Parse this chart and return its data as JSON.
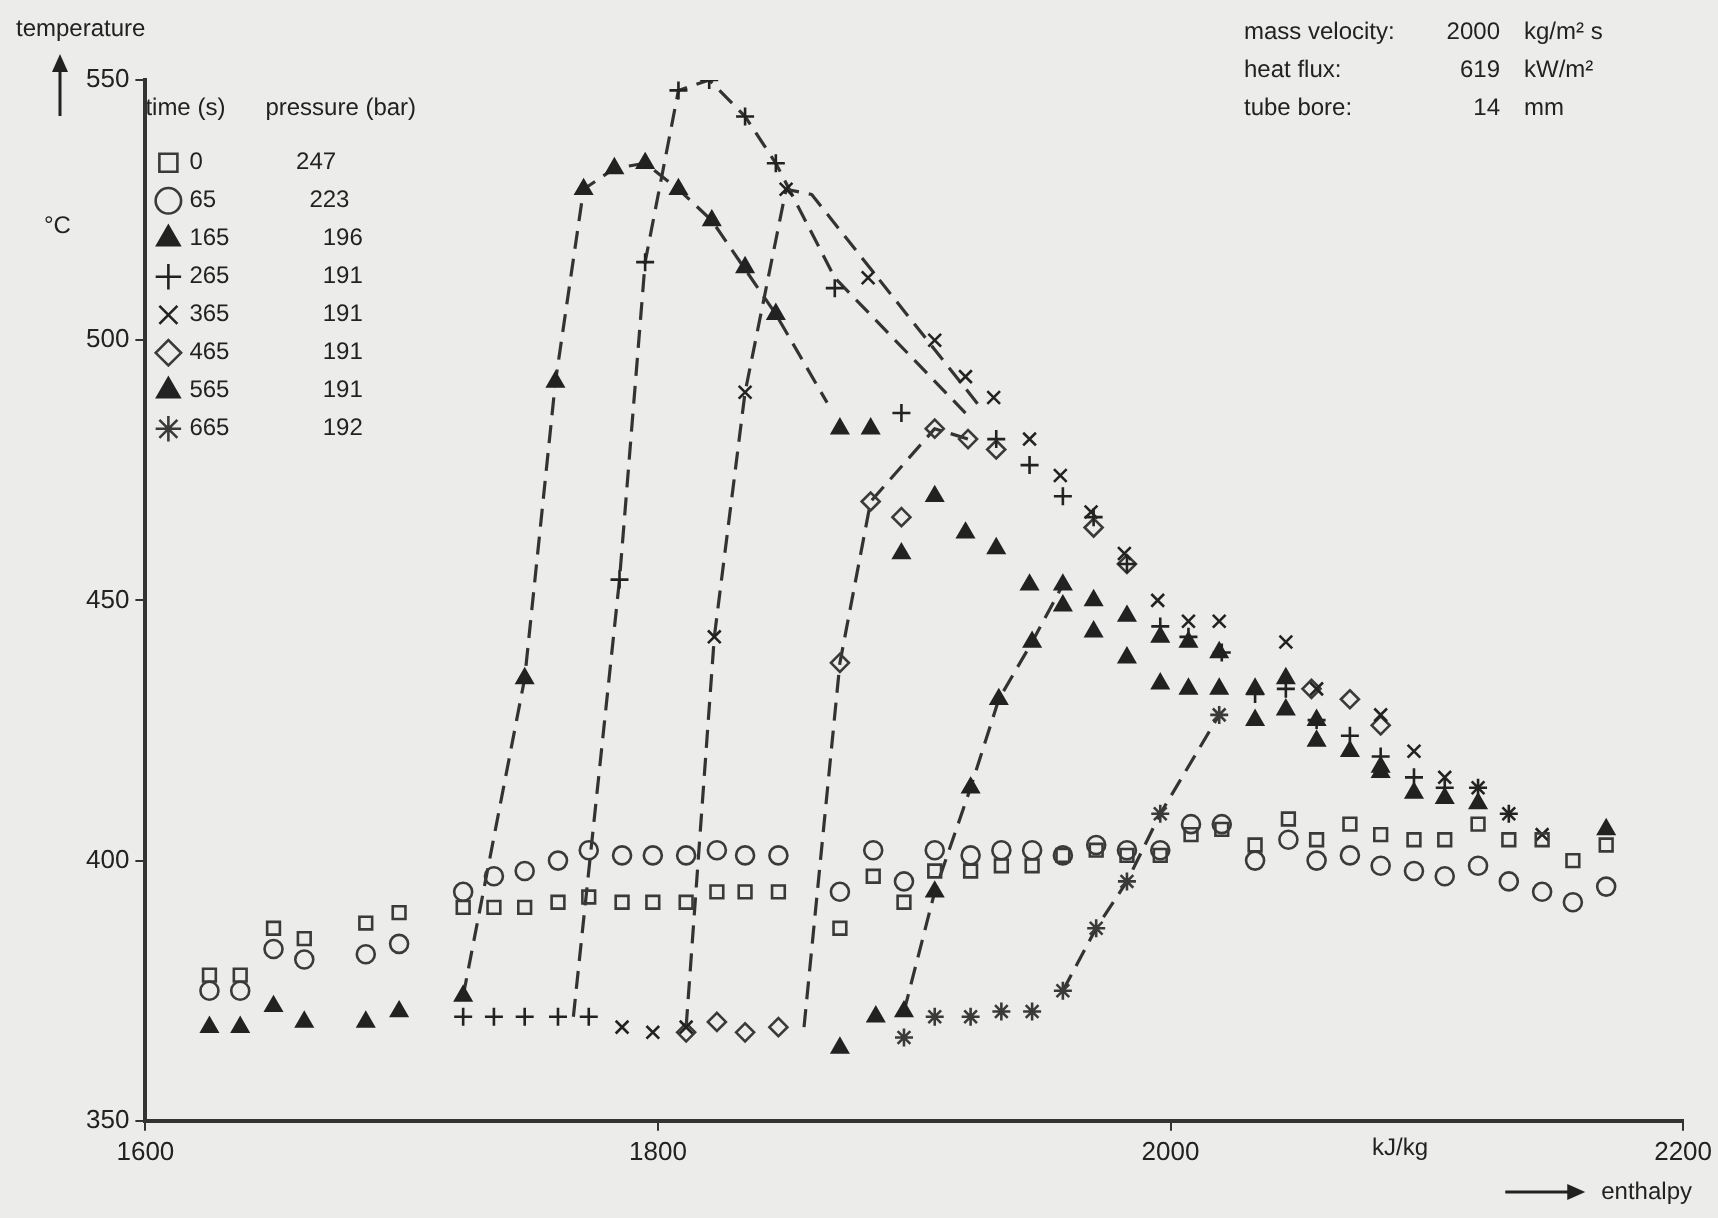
{
  "chart_data": {
    "type": "scatter",
    "xlabel": "enthalpy",
    "ylabel": "temperature",
    "legend_title": "time (s)\tpressure (bar)",
    "legend": "top left",
    "grid": false,
    "xlim": [
      1600,
      2200
    ],
    "xticks": [
      1600,
      1800,
      2000,
      2200
    ],
    "ylim": [
      350,
      550
    ],
    "yticks": [
      350,
      400,
      450,
      500,
      550
    ],
    "annotations": [
      "°C",
      "kJ/kg",
      "mass velocity:\t2000\tkg/m² s",
      "heat flux:\t619\tkW/m²",
      "tube bore:\t14\tmm"
    ],
    "series": [
      {
        "name": "0\t247",
        "color": "#3a3a3a",
        "marker": "square",
        "x": [
          1625,
          1637,
          1650,
          1662,
          1686,
          1699,
          1724,
          1736,
          1748,
          1761,
          1773,
          1786,
          1798,
          1811,
          1823,
          1834,
          1847,
          1871,
          1884,
          1896,
          1908,
          1922,
          1934,
          1946,
          1958,
          1971,
          1983,
          1996,
          2008,
          2020,
          2033,
          2046,
          2057,
          2070,
          2082,
          2095,
          2107,
          2120,
          2132,
          2145,
          2157,
          2170
        ],
        "values": [
          378,
          378,
          387,
          385,
          388,
          390,
          391,
          391,
          391,
          392,
          393,
          392,
          392,
          392,
          394,
          394,
          394,
          387,
          397,
          392,
          398,
          398,
          399,
          399,
          401,
          402,
          401,
          401,
          405,
          406,
          403,
          408,
          404,
          407,
          405,
          404,
          404,
          407,
          404,
          404,
          400,
          403
        ]
      },
      {
        "name": "65\t223",
        "color": "#3a3a3a",
        "marker": "circle",
        "x": [
          1625,
          1637,
          1650,
          1662,
          1686,
          1699,
          1724,
          1736,
          1748,
          1761,
          1773,
          1786,
          1798,
          1811,
          1823,
          1834,
          1847,
          1871,
          1884,
          1896,
          1908,
          1922,
          1934,
          1946,
          1958,
          1971,
          1983,
          1996,
          2008,
          2020,
          2033,
          2046,
          2057,
          2070,
          2082,
          2095,
          2107,
          2120,
          2132,
          2145,
          2157,
          2170
        ],
        "values": [
          375,
          375,
          383,
          381,
          382,
          384,
          394,
          397,
          398,
          400,
          402,
          401,
          401,
          401,
          402,
          401,
          401,
          394,
          402,
          396,
          402,
          401,
          402,
          402,
          401,
          403,
          402,
          402,
          407,
          407,
          400,
          404,
          400,
          401,
          399,
          398,
          397,
          399,
          396,
          394,
          392,
          395
        ]
      },
      {
        "name": "165\t196",
        "color": "#222222",
        "marker": "triangle",
        "x": [
          1724,
          1748,
          1760,
          1771,
          1783,
          1795,
          1808,
          1821,
          1834,
          1846,
          1871,
          1883,
          1895,
          1908,
          1920,
          1932,
          1945,
          1958,
          1970,
          1983,
          1996,
          2007,
          2019,
          2033,
          2045,
          2057,
          2082,
          2095,
          2107,
          2120,
          2170
        ],
        "values": [
          374,
          435,
          492,
          529,
          533,
          534,
          529,
          523,
          514,
          505,
          483,
          483,
          459,
          470,
          463,
          460,
          453,
          449,
          444,
          439,
          434,
          433,
          433,
          427,
          429,
          423,
          417,
          413,
          412,
          411,
          406
        ]
      },
      {
        "name": "265\t191",
        "color": "#222222",
        "marker": "cross",
        "x": [
          1724,
          1736,
          1748,
          1761,
          1773,
          1785,
          1795,
          1808,
          1820,
          1834,
          1846,
          1869,
          1895,
          1932,
          1945,
          1958,
          1970,
          1983,
          1996,
          2007,
          2020,
          2033,
          2045,
          2057,
          2070,
          2082,
          2095,
          2107,
          2120,
          2132
        ],
        "values": [
          370,
          370,
          370,
          370,
          370,
          454,
          515,
          548,
          550,
          543,
          534,
          510,
          486,
          481,
          476,
          470,
          466,
          457,
          445,
          443,
          440,
          432,
          433,
          427,
          424,
          420,
          416,
          414,
          414,
          409
        ]
      },
      {
        "name": "365\t191",
        "color": "#222222",
        "marker": "x",
        "x": [
          1786,
          1798,
          1811,
          1822,
          1834,
          1850,
          1882,
          1908,
          1920,
          1931,
          1945,
          1957,
          1969,
          1982,
          1995,
          2007,
          2019,
          2045,
          2057,
          2082,
          2095,
          2107,
          2120,
          2132,
          2145
        ],
        "values": [
          368,
          367,
          368,
          443,
          490,
          529,
          512,
          500,
          493,
          489,
          481,
          474,
          467,
          459,
          450,
          446,
          446,
          442,
          433,
          428,
          421,
          416,
          414,
          409,
          405
        ]
      },
      {
        "name": "465\t191",
        "color": "#3a3a3a",
        "marker": "diamond",
        "x": [
          1811,
          1823,
          1834,
          1847,
          1871,
          1883,
          1895,
          1908,
          1921,
          1932,
          1970,
          1983,
          2055,
          2070,
          2082
        ],
        "values": [
          367,
          369,
          367,
          368,
          438,
          469,
          466,
          483,
          481,
          479,
          464,
          457,
          433,
          431,
          426
        ]
      },
      {
        "name": "565\t191",
        "color": "#222222",
        "marker": "triangle",
        "x": [
          1625,
          1637,
          1650,
          1662,
          1686,
          1699,
          1871,
          1885,
          1896,
          1908,
          1922,
          1933,
          1946,
          1958,
          1970,
          1983,
          1996,
          2007,
          2019,
          2033,
          2045,
          2057,
          2070,
          2082
        ],
        "values": [
          368,
          368,
          372,
          369,
          369,
          371,
          364,
          370,
          371,
          394,
          414,
          431,
          442,
          453,
          450,
          447,
          443,
          442,
          440,
          433,
          435,
          427,
          421,
          418
        ]
      },
      {
        "name": "665\t192",
        "color": "#3a3a3a",
        "x": [
          1896,
          1908,
          1922,
          1934,
          1946,
          1958,
          1971,
          1983,
          1996,
          2019
        ],
        "values": [
          366,
          370,
          370,
          371,
          371,
          375,
          387,
          396,
          409,
          428
        ]
      },
      {
        "type": "line",
        "color": "#333333",
        "marker": "none",
        "line_style": "dashed",
        "x": [
          1724,
          1748,
          1760,
          1771,
          1783,
          1795,
          1808,
          1821,
          1846,
          1866
        ],
        "values": [
          374,
          435,
          492,
          529,
          533,
          534,
          529,
          523,
          505,
          488
        ]
      },
      {
        "type": "line",
        "color": "#333333",
        "marker": "none",
        "line_style": "dashed",
        "x": [
          1767,
          1785,
          1795,
          1808,
          1820,
          1834,
          1846,
          1869,
          1920
        ],
        "values": [
          370,
          454,
          515,
          548,
          550,
          543,
          534,
          512,
          486
        ]
      },
      {
        "type": "line",
        "color": "#333333",
        "marker": "none",
        "line_style": "dashed",
        "x": [
          1811,
          1822,
          1834,
          1850,
          1860,
          1926
        ],
        "values": [
          368,
          443,
          490,
          529,
          528,
          487
        ]
      },
      {
        "type": "line",
        "color": "#333333",
        "marker": "none",
        "line_style": "dashed",
        "x": [
          1857,
          1871,
          1883,
          1908,
          1921
        ],
        "values": [
          368,
          438,
          469,
          483,
          481
        ]
      },
      {
        "type": "line",
        "color": "#333333",
        "marker": "none",
        "line_style": "dashed",
        "x": [
          1896,
          1908,
          1922,
          1933,
          1946,
          1958
        ],
        "values": [
          371,
          394,
          414,
          431,
          442,
          453
        ]
      },
      {
        "type": "line",
        "color": "#333333",
        "marker": "none",
        "line_style": "dashed",
        "x": [
          1958,
          1971,
          1983,
          1996,
          2019
        ],
        "values": [
          375,
          387,
          396,
          409,
          428
        ]
      }
    ]
  }
}
